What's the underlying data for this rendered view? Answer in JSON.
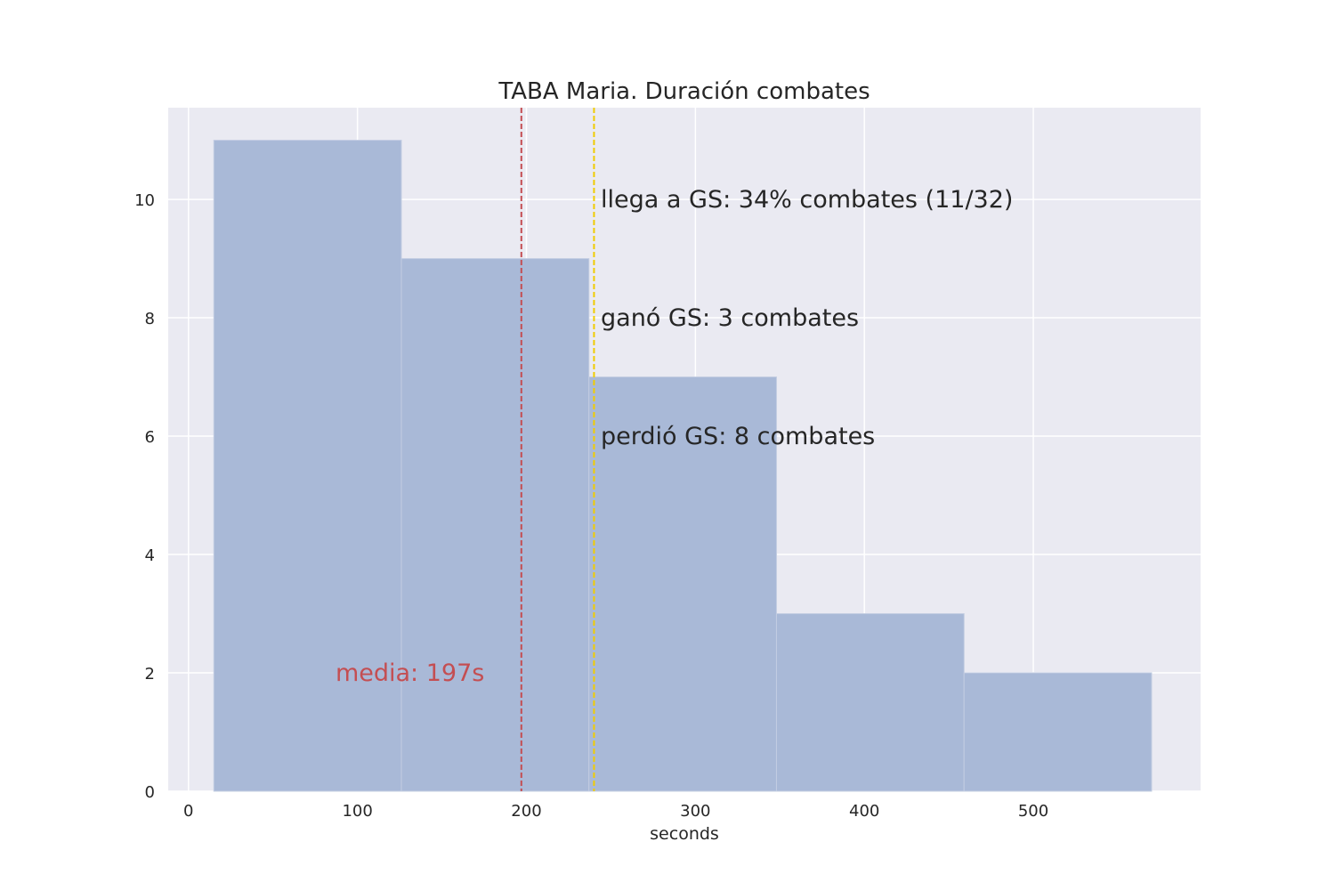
{
  "chart_data": {
    "type": "bar",
    "title": "TABA Maria. Duración combates",
    "xlabel": "seconds",
    "ylabel": "",
    "bins": [
      {
        "start": 15,
        "end": 126,
        "count": 11
      },
      {
        "start": 126,
        "end": 237,
        "count": 9
      },
      {
        "start": 237,
        "end": 348,
        "count": 7
      },
      {
        "start": 348,
        "end": 459,
        "count": 3
      },
      {
        "start": 459,
        "end": 570,
        "count": 2
      }
    ],
    "xlim": [
      -12,
      599
    ],
    "ylim": [
      0,
      11.55
    ],
    "xticks": [
      0,
      100,
      200,
      300,
      400,
      500
    ],
    "yticks": [
      0,
      2,
      4,
      6,
      8,
      10
    ],
    "grid": true,
    "bar_color": "#a9b9d7",
    "background_color": "#eaeaf2",
    "reference_lines": [
      {
        "x": 197,
        "color": "#c44e52",
        "style": "dashed"
      },
      {
        "x": 240,
        "color": "#f0cc00",
        "style": "dashed"
      }
    ],
    "annotations": [
      {
        "text": "llega a GS: 34% combates (11/32)",
        "x": 244,
        "y": 10.0,
        "color": "#262626"
      },
      {
        "text": "ganó GS: 3 combates",
        "x": 244,
        "y": 8.0,
        "color": "#262626"
      },
      {
        "text": "perdió GS: 8 combates",
        "x": 244,
        "y": 6.0,
        "color": "#262626"
      },
      {
        "text": "media: 197s",
        "x": 87,
        "y": 2.0,
        "color": "#c44e52"
      }
    ]
  }
}
